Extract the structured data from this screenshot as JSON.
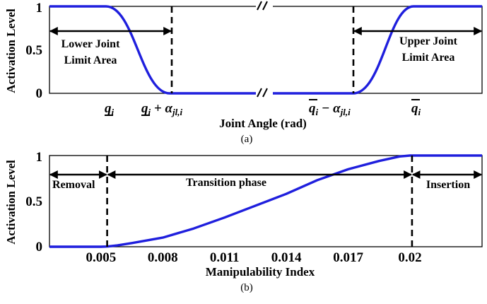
{
  "colors": {
    "curve": "#1f1fdd",
    "axis": "#000000"
  },
  "chart_data": [
    {
      "type": "line",
      "caption": "(a)",
      "xlabel": "Joint Angle (rad)",
      "ylabel": "Activation Level",
      "ylim": [
        0,
        1
      ],
      "yticks": [
        "0",
        "0.5",
        "1"
      ],
      "xtick_labels": [
        {
          "text": "q",
          "sub": "i",
          "mark": "under"
        },
        {
          "text": "q",
          "sub": "i",
          "mark": "under",
          "suffix": " + α",
          "suffix_sub": "jl,i"
        },
        {
          "text": "q",
          "sub": "i",
          "mark": "over",
          "suffix": " − α",
          "suffix_sub": "jl,i"
        },
        {
          "text": "q",
          "sub": "i",
          "mark": "over"
        }
      ],
      "axis_break": true,
      "series": [
        {
          "profile": "plateau",
          "levels": [
            1,
            0,
            0,
            1
          ],
          "transitions": "smooth"
        }
      ],
      "annotations": [
        {
          "text": "Lower Joint Limit Area",
          "line1": "Lower Joint",
          "line2": "Limit Area"
        },
        {
          "text": "Upper Joint Limit Area",
          "line1": "Upper Joint",
          "line2": "Limit Area"
        }
      ]
    },
    {
      "type": "line",
      "caption": "(b)",
      "xlabel": "Manipulability Index",
      "ylabel": "Activation Level",
      "xlim": [
        0.0025,
        0.0235
      ],
      "ylim": [
        0,
        1
      ],
      "yticks": [
        "0",
        "0.5",
        "1"
      ],
      "xticks": [
        "0.005",
        "0.008",
        "0.011",
        "0.014",
        "0.017",
        "0.02"
      ],
      "xtick_values": [
        0.005,
        0.008,
        0.011,
        0.014,
        0.017,
        0.02
      ],
      "series": [
        {
          "x": [
            0.0025,
            0.005,
            0.0053,
            0.0058,
            0.0065,
            0.008,
            0.0095,
            0.011,
            0.0125,
            0.014,
            0.0155,
            0.017,
            0.0185,
            0.0195,
            0.02,
            0.0235
          ],
          "y": [
            0,
            0,
            0.002,
            0.015,
            0.04,
            0.1,
            0.2,
            0.32,
            0.45,
            0.58,
            0.73,
            0.85,
            0.94,
            0.99,
            1,
            1
          ]
        }
      ],
      "annotations": [
        {
          "text": "Removal"
        },
        {
          "text": "Transition phase"
        },
        {
          "text": "Insertion"
        }
      ],
      "vlines": [
        0.0053,
        0.0201
      ]
    }
  ]
}
